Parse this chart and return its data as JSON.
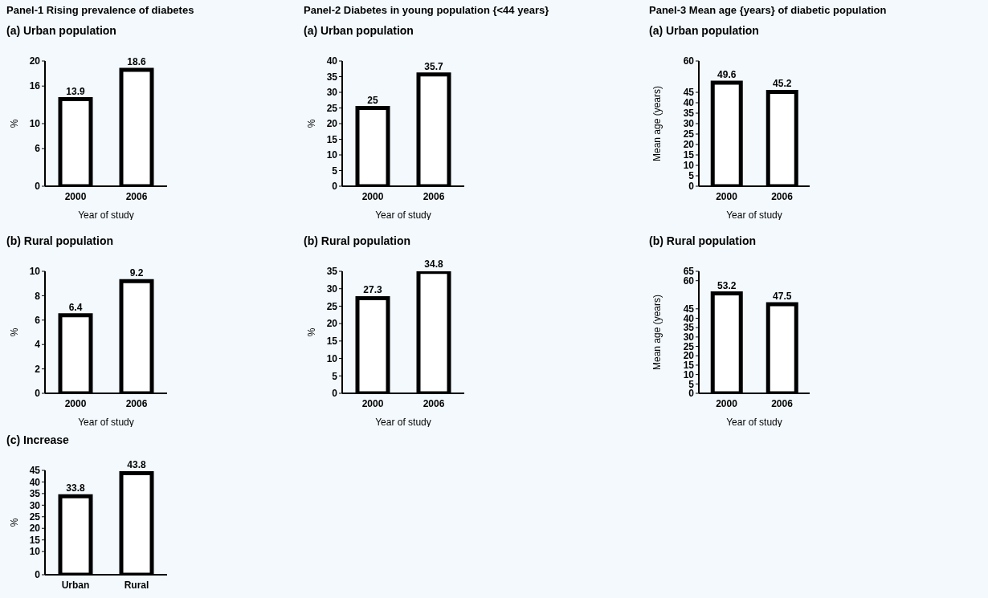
{
  "chart_data": [
    {
      "type": "bar",
      "title": "Panel-1 Rising prevalence of diabetes",
      "subtitle": "(a) Urban population",
      "categories": [
        "2000",
        "2006"
      ],
      "values": [
        13.9,
        18.6
      ],
      "color": "#ffffff",
      "xlabel": "Year of study",
      "ylabel": "%",
      "ylim": [
        0,
        20
      ],
      "yticks": [
        0,
        6,
        10,
        16,
        20
      ],
      "data_labels": true
    },
    {
      "type": "bar",
      "title": "Panel-2 Diabetes in young population {<44 years}",
      "subtitle": "(a) Urban population",
      "categories": [
        "2000",
        "2006"
      ],
      "values": [
        25,
        35.7
      ],
      "color": "#ffffff",
      "xlabel": "Year of study",
      "ylabel": "%",
      "ylim": [
        0,
        40
      ],
      "yticks": [
        0,
        5,
        10,
        15,
        20,
        25,
        30,
        35,
        40
      ],
      "data_labels": true
    },
    {
      "type": "bar",
      "title": "Panel-3 Mean age {years} of diabetic population",
      "subtitle": "(a) Urban population",
      "categories": [
        "2000",
        "2006"
      ],
      "values": [
        49.6,
        45.2
      ],
      "color": "#ffffff",
      "xlabel": "Year of study",
      "ylabel": "Mean age (years)",
      "ylim": [
        0,
        60
      ],
      "yticks": [
        0,
        5,
        10,
        15,
        20,
        25,
        30,
        35,
        40,
        45,
        60
      ],
      "data_labels": true
    },
    {
      "type": "bar",
      "subtitle": "(b) Rural population",
      "categories": [
        "2000",
        "2006"
      ],
      "values": [
        6.4,
        9.2
      ],
      "color": "#ffffff",
      "xlabel": "Year of study",
      "ylabel": "%",
      "ylim": [
        0,
        10
      ],
      "yticks": [
        0,
        2,
        4,
        6,
        8,
        10
      ],
      "data_labels": true
    },
    {
      "type": "bar",
      "subtitle": "(b) Rural population",
      "categories": [
        "2000",
        "2006"
      ],
      "values": [
        27.3,
        34.8
      ],
      "color": "#ffffff",
      "xlabel": "Year of study",
      "ylabel": "%",
      "ylim": [
        0,
        35
      ],
      "yticks": [
        0,
        5,
        10,
        15,
        20,
        25,
        30,
        35
      ],
      "data_labels": true
    },
    {
      "type": "bar",
      "subtitle": "(b) Rural population",
      "categories": [
        "2000",
        "2006"
      ],
      "values": [
        53.2,
        47.5
      ],
      "color": "#ffffff",
      "xlabel": "Year of study",
      "ylabel": "Mean age (years)",
      "ylim": [
        0,
        65
      ],
      "yticks": [
        0,
        5,
        10,
        15,
        20,
        25,
        30,
        35,
        40,
        45,
        60,
        65
      ],
      "data_labels": true
    },
    {
      "type": "bar",
      "subtitle": "(c) Increase",
      "categories": [
        "Urban",
        "Rural"
      ],
      "values": [
        33.8,
        43.8
      ],
      "color": "#ffffff",
      "ylabel": "%",
      "ylim": [
        0,
        45
      ],
      "yticks": [
        0,
        10,
        15,
        20,
        25,
        30,
        35,
        40,
        45
      ],
      "data_labels": true
    }
  ]
}
